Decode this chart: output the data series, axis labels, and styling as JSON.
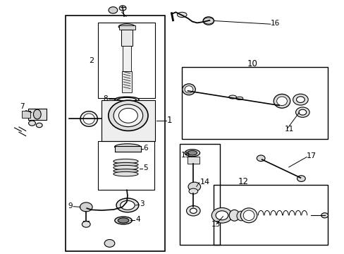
{
  "bg_color": "#ffffff",
  "line_color": "#000000",
  "text_color": "#000000",
  "figure_width": 4.89,
  "figure_height": 3.6,
  "dpi": 100
}
